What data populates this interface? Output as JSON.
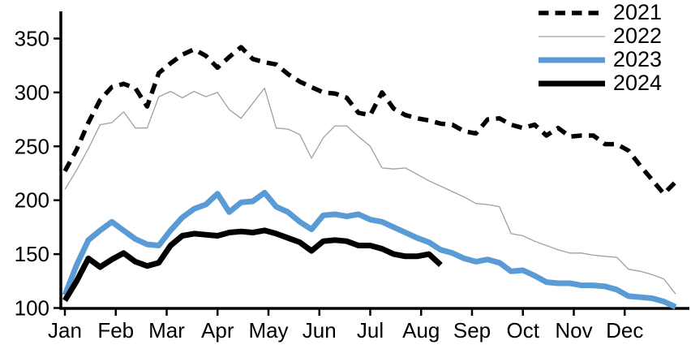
{
  "chart_data": {
    "type": "line",
    "title": "",
    "xlabel": "",
    "ylabel": "",
    "x_unit": "weekly points, January through December",
    "x_tick_labels": [
      "Jan",
      "Feb",
      "Mar",
      "Apr",
      "May",
      "Jun",
      "Jul",
      "Aug",
      "Sep",
      "Oct",
      "Nov",
      "Dec"
    ],
    "y_tick_labels": [
      "350",
      "300",
      "250",
      "200",
      "150",
      "100"
    ],
    "y_tick_values": [
      350,
      300,
      250,
      200,
      150,
      100
    ],
    "ylim": [
      100,
      375
    ],
    "grid": false,
    "legend_position": "top-right",
    "series": [
      {
        "name": "2021",
        "color": "#000000",
        "style": "dashed",
        "width": 5.5,
        "values": [
          227,
          247,
          272,
          293,
          305,
          308,
          304,
          287,
          318,
          327,
          335,
          340,
          334,
          323,
          333,
          342,
          331,
          328,
          326,
          317,
          310,
          305,
          300,
          299,
          295,
          281,
          279,
          300,
          285,
          279,
          276,
          274,
          271,
          270,
          264,
          262,
          275,
          276,
          270,
          267,
          270,
          260,
          267,
          259,
          260,
          260,
          252,
          252,
          246,
          232,
          219,
          206,
          217
        ]
      },
      {
        "name": "2022",
        "color": "#a0a0a0",
        "style": "solid",
        "width": 1.3,
        "values": [
          210,
          228,
          248,
          270,
          272,
          282,
          267,
          267,
          296,
          301,
          295,
          301,
          296,
          300,
          284,
          276,
          290,
          304,
          267,
          266,
          261,
          239,
          258,
          269,
          269,
          259,
          250,
          230,
          229,
          230,
          224,
          218,
          213,
          208,
          203,
          197,
          196,
          194,
          169,
          167,
          162,
          158,
          154,
          151,
          151,
          149,
          148,
          147,
          136,
          134,
          131,
          127,
          113
        ]
      },
      {
        "name": "2023",
        "color": "#5b9bd5",
        "style": "solid",
        "width": 7,
        "values": [
          112,
          140,
          163,
          172,
          180,
          172,
          164,
          159,
          158,
          172,
          184,
          192,
          196,
          206,
          189,
          198,
          199,
          207,
          194,
          189,
          180,
          173,
          186,
          187,
          185,
          187,
          182,
          180,
          175,
          170,
          165,
          161,
          154,
          151,
          146,
          143,
          145,
          142,
          134,
          135,
          130,
          124,
          123,
          123,
          121,
          121,
          120,
          117,
          111,
          110,
          109,
          106,
          101
        ]
      },
      {
        "name": "2024",
        "color": "#000000",
        "style": "solid",
        "width": 7,
        "values": [
          107,
          125,
          146,
          138,
          145,
          151,
          143,
          139,
          142,
          158,
          167,
          169,
          168,
          167,
          170,
          171,
          170,
          172,
          169,
          165,
          161,
          153,
          162,
          163,
          162,
          158,
          158,
          155,
          150,
          148,
          148,
          150,
          140
        ]
      }
    ]
  }
}
